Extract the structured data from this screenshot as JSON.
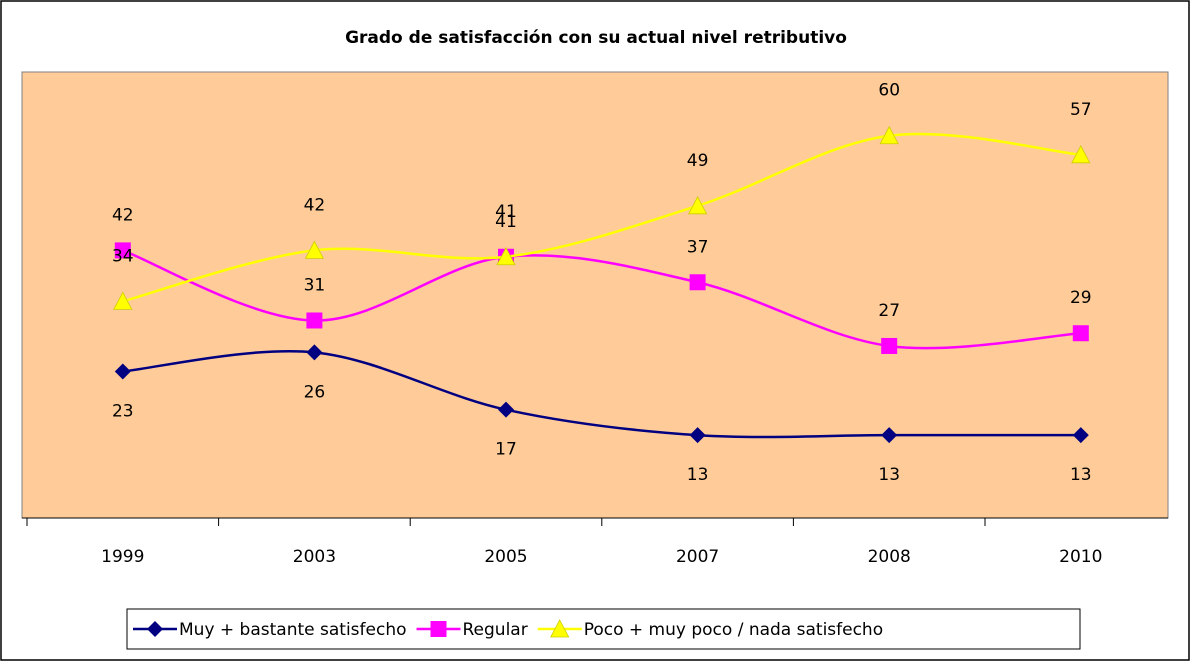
{
  "chart_data": {
    "type": "line",
    "title": "Grado de satisfacción con su actual nivel retributivo",
    "categories": [
      "1999",
      "2003",
      "2005",
      "2007",
      "2008",
      "2010"
    ],
    "series": [
      {
        "name": "Muy + bastante satisfecho",
        "color": "#000080",
        "values": [
          23,
          26,
          17,
          13,
          13,
          13
        ]
      },
      {
        "name": "Regular",
        "color": "#FF00FF",
        "values": [
          42,
          31,
          41,
          37,
          27,
          29
        ]
      },
      {
        "name": "Poco + muy poco / nada satisfecho",
        "color": "#FFFF00",
        "values": [
          34,
          42,
          41,
          49,
          60,
          57
        ]
      }
    ],
    "ylim": [
      0,
      70
    ],
    "plot_background": "#FFCC99",
    "legend": "bottom"
  }
}
